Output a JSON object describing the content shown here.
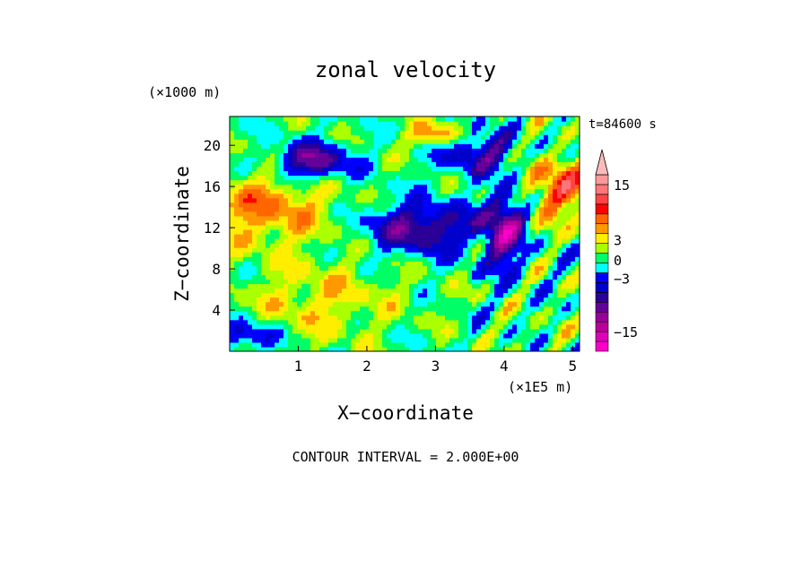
{
  "chart_data": {
    "type": "heatmap",
    "title": "zonal velocity",
    "xlabel": "X−coordinate",
    "ylabel": "Z−coordinate",
    "x_unit_label": "(×1E5 m)",
    "y_unit_label": "(×1000 m)",
    "time_label": "t=84600 s",
    "footer": "CONTOUR INTERVAL = 2.000E+00",
    "xlim": [
      0.0,
      5.1
    ],
    "ylim": [
      0.0,
      22.8
    ],
    "x_ticks": [
      1,
      2,
      3,
      4,
      5
    ],
    "y_ticks": [
      4,
      8,
      12,
      16,
      20
    ],
    "colorbar": {
      "levels": [
        -19,
        -17,
        -15,
        -13,
        -11,
        -9,
        -7,
        -5,
        -3,
        -1,
        1,
        3,
        5,
        7,
        9,
        11,
        13,
        15,
        17,
        19
      ],
      "colors": [
        "#ff00cc",
        "#dd00bb",
        "#bb0099",
        "#990099",
        "#66009a",
        "#2a0096",
        "#0000cc",
        "#0000ff",
        "#00ffff",
        "#00ff66",
        "#aaff00",
        "#ffee00",
        "#ff9900",
        "#ff6600",
        "#ff0000",
        "#ff4444",
        "#ff7777",
        "#ff9999",
        "#ffbbbb"
      ],
      "tick_labels": [
        {
          "label": "15",
          "value": 15
        },
        {
          "label": "3",
          "value": 3
        },
        {
          "label": "0",
          "value": 0
        },
        {
          "label": "−3",
          "value": -3
        },
        {
          "label": "−15",
          "value": -15
        }
      ]
    },
    "grid": false
  }
}
